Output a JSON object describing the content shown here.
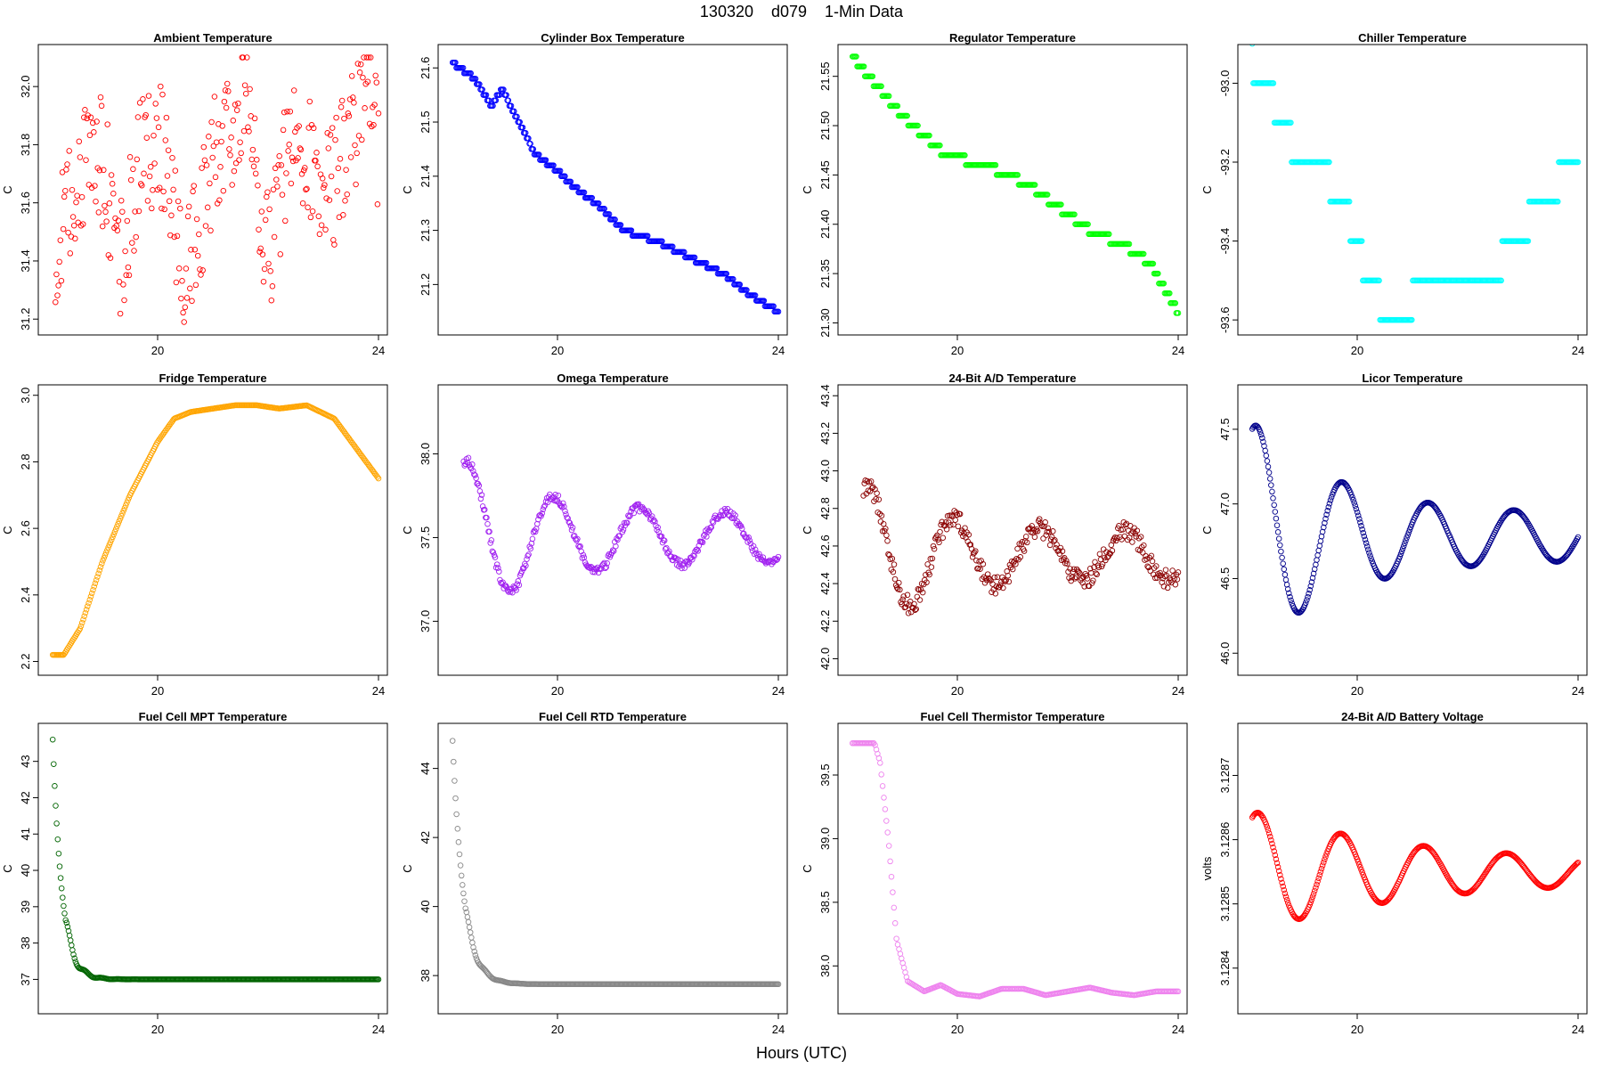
{
  "figure": {
    "title": "130320    d079    1-Min Data",
    "xlabel": "Hours (UTC)"
  },
  "chart_data": [
    {
      "type": "scatter",
      "title": "Ambient Temperature",
      "ylabel": "C",
      "color": "#ff0000",
      "xlim": [
        18,
        24
      ],
      "ylim": [
        31.17,
        32.12
      ],
      "yticks": [
        31.2,
        31.4,
        31.6,
        31.8,
        32.0
      ],
      "yticklabels": [
        "31.2",
        "31.4",
        "31.6",
        "31.8",
        "32.0"
      ],
      "xticks": [
        20,
        24
      ],
      "xticklabels": [
        "20",
        "24"
      ],
      "gen": "noisy",
      "x": [
        18.15,
        18.8,
        19.3,
        19.7,
        20.1,
        20.45,
        20.8,
        21.2,
        21.6,
        21.8,
        22.0,
        22.3,
        22.8,
        23.2,
        23.5,
        23.9,
        24.0
      ],
      "y": [
        31.35,
        31.85,
        31.45,
        31.7,
        31.85,
        31.3,
        31.6,
        31.8,
        32.05,
        31.55,
        31.45,
        31.75,
        31.8,
        31.6,
        31.9,
        31.95,
        31.7
      ],
      "spread": 0.22
    },
    {
      "type": "scatter",
      "title": "Cylinder Box Temperature",
      "ylabel": "C",
      "color": "#0000ff",
      "xlim": [
        18,
        24
      ],
      "ylim": [
        21.12,
        21.63
      ],
      "yticks": [
        21.2,
        21.3,
        21.4,
        21.5,
        21.6
      ],
      "yticklabels": [
        "21.2",
        "21.3",
        "21.4",
        "21.5",
        "21.6"
      ],
      "xticks": [
        20,
        24
      ],
      "xticklabels": [
        "20",
        "24"
      ],
      "gen": "smooth",
      "quant": 0.01,
      "x": [
        18.1,
        18.5,
        18.8,
        19.0,
        19.3,
        19.6,
        20.0,
        20.3,
        20.7,
        21.2,
        21.8,
        22.4,
        23.0,
        23.5,
        24.0
      ],
      "y": [
        21.61,
        21.58,
        21.53,
        21.56,
        21.5,
        21.44,
        21.41,
        21.38,
        21.35,
        21.3,
        21.28,
        21.25,
        21.22,
        21.18,
        21.15
      ]
    },
    {
      "type": "scatter",
      "title": "Regulator Temperature",
      "ylabel": "C",
      "color": "#00ff00",
      "xlim": [
        18,
        24
      ],
      "ylim": [
        21.295,
        21.575
      ],
      "yticks": [
        21.3,
        21.35,
        21.4,
        21.45,
        21.5,
        21.55
      ],
      "yticklabels": [
        "21.30",
        "21.35",
        "21.40",
        "21.45",
        "21.50",
        "21.55"
      ],
      "xticks": [
        20,
        24
      ],
      "xticklabels": [
        "20",
        "24"
      ],
      "gen": "smooth",
      "quant": 0.01,
      "x": [
        18.1,
        19.0,
        19.8,
        20.5,
        21.3,
        22.0,
        22.5,
        23.0,
        23.5,
        23.8,
        24.0
      ],
      "y": [
        21.57,
        21.51,
        21.47,
        21.46,
        21.44,
        21.41,
        21.39,
        21.38,
        21.36,
        21.33,
        21.31
      ]
    },
    {
      "type": "scatter",
      "title": "Chiller Temperature",
      "ylabel": "C",
      "color": "#00ffff",
      "xlim": [
        18,
        24
      ],
      "ylim": [
        -93.62,
        -92.92
      ],
      "yticks": [
        -93.6,
        -93.4,
        -93.2,
        -93.0
      ],
      "yticklabels": [
        "-93.6",
        "-93.4",
        "-93.2",
        "-93.0"
      ],
      "xticks": [
        20,
        24
      ],
      "xticklabels": [
        "20",
        "24"
      ],
      "gen": "smooth",
      "quant": 0.1,
      "x": [
        18.1,
        18.5,
        18.8,
        19.2,
        19.5,
        19.8,
        20.1,
        20.5,
        21.0,
        21.8,
        22.5,
        22.9,
        23.3,
        23.7,
        24.0
      ],
      "y": [
        -92.95,
        -93.05,
        -93.15,
        -93.2,
        -93.25,
        -93.32,
        -93.45,
        -93.58,
        -93.55,
        -93.5,
        -93.48,
        -93.38,
        -93.32,
        -93.24,
        -93.2
      ]
    },
    {
      "type": "scatter",
      "title": "Fridge Temperature",
      "ylabel": "C",
      "color": "#ffa500",
      "xlim": [
        18,
        24
      ],
      "ylim": [
        2.18,
        3.01
      ],
      "yticks": [
        2.2,
        2.4,
        2.6,
        2.8,
        3.0
      ],
      "yticklabels": [
        "2.2",
        "2.4",
        "2.6",
        "2.8",
        "3.0"
      ],
      "xticks": [
        20,
        24
      ],
      "xticklabels": [
        "20",
        "24"
      ],
      "gen": "smooth",
      "density": 300,
      "x": [
        18.1,
        18.3,
        18.6,
        19.0,
        19.5,
        20.0,
        20.3,
        20.6,
        21.0,
        21.4,
        21.8,
        22.2,
        22.7,
        23.2,
        23.6,
        24.0
      ],
      "y": [
        2.22,
        2.22,
        2.3,
        2.5,
        2.7,
        2.86,
        2.93,
        2.95,
        2.96,
        2.97,
        2.97,
        2.96,
        2.97,
        2.93,
        2.84,
        2.75
      ]
    },
    {
      "type": "scatter",
      "title": "Omega Temperature",
      "ylabel": "C",
      "color": "#a020f0",
      "xlim": [
        18,
        24
      ],
      "ylim": [
        36.72,
        38.37
      ],
      "yticks": [
        37.0,
        37.5,
        38.0
      ],
      "yticklabels": [
        "37.0",
        "37.5",
        "38.0"
      ],
      "xticks": [
        20,
        24
      ],
      "xticklabels": [
        "20",
        "24"
      ],
      "gen": "osc",
      "osc": {
        "start": 18.3,
        "base": 37.5,
        "amp": 0.95,
        "decay": 0.7,
        "period": 1.55,
        "tail": 0.28,
        "noise": 0.025
      }
    },
    {
      "type": "scatter",
      "title": "24-Bit A/D Temperature",
      "ylabel": "C",
      "color": "#8b0000",
      "xlim": [
        18,
        24
      ],
      "ylim": [
        41.95,
        43.42
      ],
      "yticks": [
        42.0,
        42.2,
        42.4,
        42.6,
        42.8,
        43.0,
        43.2,
        43.4
      ],
      "yticklabels": [
        "42.0",
        "42.2",
        "42.4",
        "42.6",
        "42.8",
        "43.0",
        "43.2",
        "43.4"
      ],
      "xticks": [
        20,
        24
      ],
      "xticklabels": [
        "20",
        "24"
      ],
      "gen": "osc",
      "osc": {
        "start": 18.3,
        "base": 42.55,
        "amp": 0.78,
        "decay": 0.75,
        "period": 1.55,
        "tail": 0.24,
        "noise": 0.05
      }
    },
    {
      "type": "scatter",
      "title": "Licor Temperature",
      "ylabel": "C",
      "color": "#00008b",
      "xlim": [
        18,
        24
      ],
      "ylim": [
        45.9,
        47.75
      ],
      "yticks": [
        46.0,
        46.5,
        47.0,
        47.5
      ],
      "yticklabels": [
        "46.0",
        "46.5",
        "47.0",
        "47.5"
      ],
      "xticks": [
        20,
        24
      ],
      "xticklabels": [
        "20",
        "24"
      ],
      "gen": "osc",
      "osc": {
        "start": 18.1,
        "base": 46.78,
        "amp": 1.55,
        "decay": 0.65,
        "period": 1.55,
        "tail": 0.3,
        "noise": 0.0
      }
    },
    {
      "type": "scatter",
      "title": "Fuel Cell MPT Temperature",
      "ylabel": "C",
      "color": "#006400",
      "xlim": [
        18,
        24
      ],
      "ylim": [
        36.25,
        43.85
      ],
      "yticks": [
        37,
        38,
        39,
        40,
        41,
        42,
        43
      ],
      "yticklabels": [
        "37",
        "38",
        "39",
        "40",
        "41",
        "42",
        "43"
      ],
      "xticks": [
        20,
        24
      ],
      "xticklabels": [
        "20",
        "24"
      ],
      "gen": "settle",
      "settle": {
        "start": 18.1,
        "startval": 43.6,
        "final": 37.0,
        "rate": 6.0,
        "ring": 0.5,
        "ringper": 0.3
      }
    },
    {
      "type": "scatter",
      "title": "Fuel Cell RTD Temperature",
      "ylabel": "C",
      "color": "#888888",
      "xlim": [
        18,
        24
      ],
      "ylim": [
        37.1,
        45.1
      ],
      "yticks": [
        38,
        40,
        42,
        44
      ],
      "yticklabels": [
        "38",
        "40",
        "42",
        "44"
      ],
      "xticks": [
        20,
        24
      ],
      "xticklabels": [
        "20",
        "24"
      ],
      "gen": "settle",
      "settle": {
        "start": 18.1,
        "startval": 44.8,
        "final": 37.75,
        "rate": 5.0,
        "ring": 0.4,
        "ringper": 0.3
      }
    },
    {
      "type": "scatter",
      "title": "Fuel Cell Thermistor Temperature",
      "ylabel": "C",
      "color": "#ee82ee",
      "xlim": [
        18,
        24
      ],
      "ylim": [
        37.68,
        39.85
      ],
      "yticks": [
        38.0,
        38.5,
        39.0,
        39.5
      ],
      "yticklabels": [
        "38.0",
        "38.5",
        "39.0",
        "39.5"
      ],
      "xticks": [
        20,
        24
      ],
      "xticklabels": [
        "20",
        "24"
      ],
      "gen": "smooth",
      "density": 260,
      "x": [
        18.1,
        18.5,
        18.6,
        18.75,
        18.9,
        19.1,
        19.4,
        19.7,
        20.0,
        20.4,
        20.8,
        21.2,
        21.6,
        22.0,
        22.4,
        22.8,
        23.2,
        23.6,
        24.0
      ],
      "y": [
        39.75,
        39.75,
        39.6,
        39.0,
        38.2,
        37.88,
        37.8,
        37.85,
        37.78,
        37.76,
        37.82,
        37.82,
        37.77,
        37.8,
        37.83,
        37.79,
        37.77,
        37.8,
        37.8
      ]
    },
    {
      "type": "scatter",
      "title": "24-Bit A/D Battery Voltage",
      "ylabel": "volts",
      "color": "#ff0000",
      "xlim": [
        18,
        24
      ],
      "ylim": [
        3.12834,
        3.12877
      ],
      "yticks": [
        3.1284,
        3.1285,
        3.1286,
        3.1287
      ],
      "yticklabels": [
        "3.1284",
        "3.1285",
        "3.1286",
        "3.1287"
      ],
      "xticks": [
        20,
        24
      ],
      "xticklabels": [
        "20",
        "24"
      ],
      "gen": "osc",
      "osc": {
        "start": 18.1,
        "base": 3.12855,
        "amp": 0.00019,
        "decay": 0.35,
        "period": 1.5,
        "tail": 2.5e-05,
        "noise": 0.0,
        "phase": 1.1
      }
    }
  ]
}
